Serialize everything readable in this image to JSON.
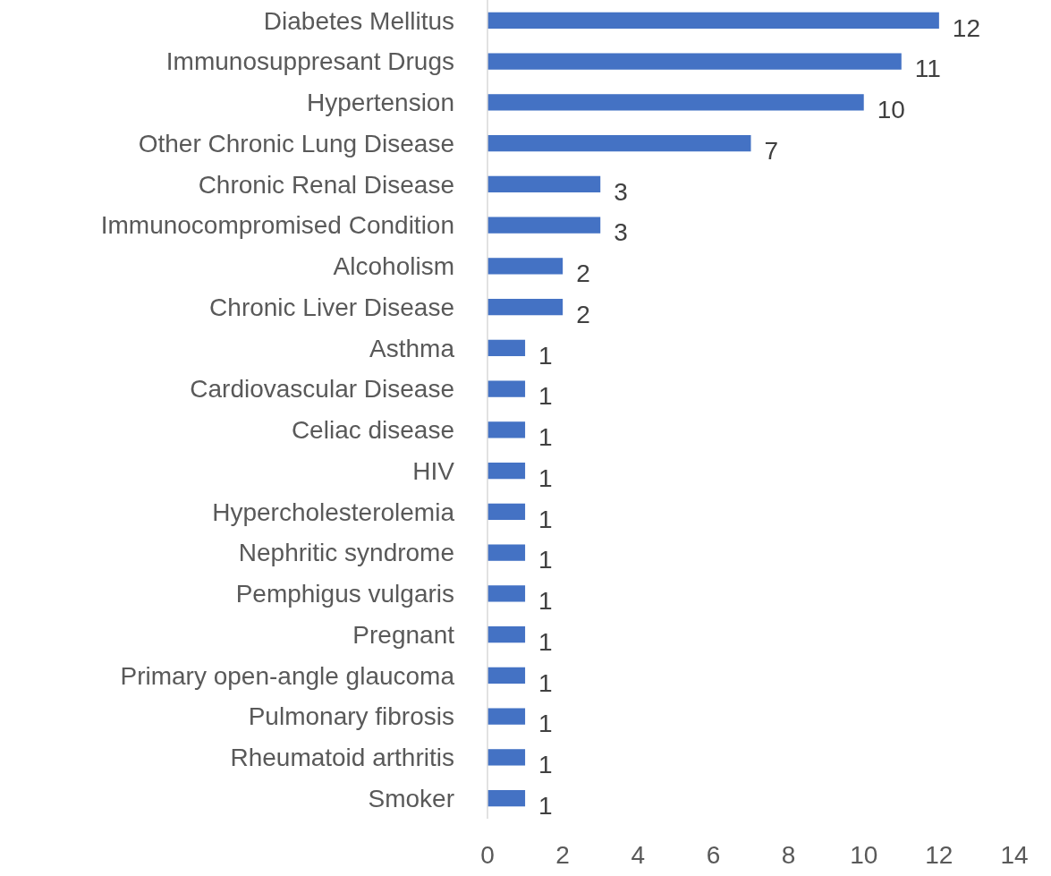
{
  "chart_data": {
    "type": "bar",
    "orientation": "horizontal",
    "categories": [
      "Diabetes Mellitus",
      "Immunosuppresant Drugs",
      "Hypertension",
      "Other Chronic Lung Disease",
      "Chronic Renal Disease",
      "Immunocompromised Condition",
      "Alcoholism",
      "Chronic Liver Disease",
      "Asthma",
      "Cardiovascular Disease",
      "Celiac disease",
      "HIV",
      "Hypercholesterolemia",
      "Nephritic syndrome",
      "Pemphigus vulgaris",
      "Pregnant",
      "Primary open-angle glaucoma",
      "Pulmonary fibrosis",
      "Rheumatoid arthritis",
      "Smoker"
    ],
    "values": [
      12,
      11,
      10,
      7,
      3,
      3,
      2,
      2,
      1,
      1,
      1,
      1,
      1,
      1,
      1,
      1,
      1,
      1,
      1,
      1
    ],
    "color": "#4472c4",
    "xlim": [
      0,
      14
    ],
    "xticks": [
      0,
      2,
      4,
      6,
      8,
      10,
      12,
      14
    ],
    "data_labels": true,
    "grid": false
  }
}
